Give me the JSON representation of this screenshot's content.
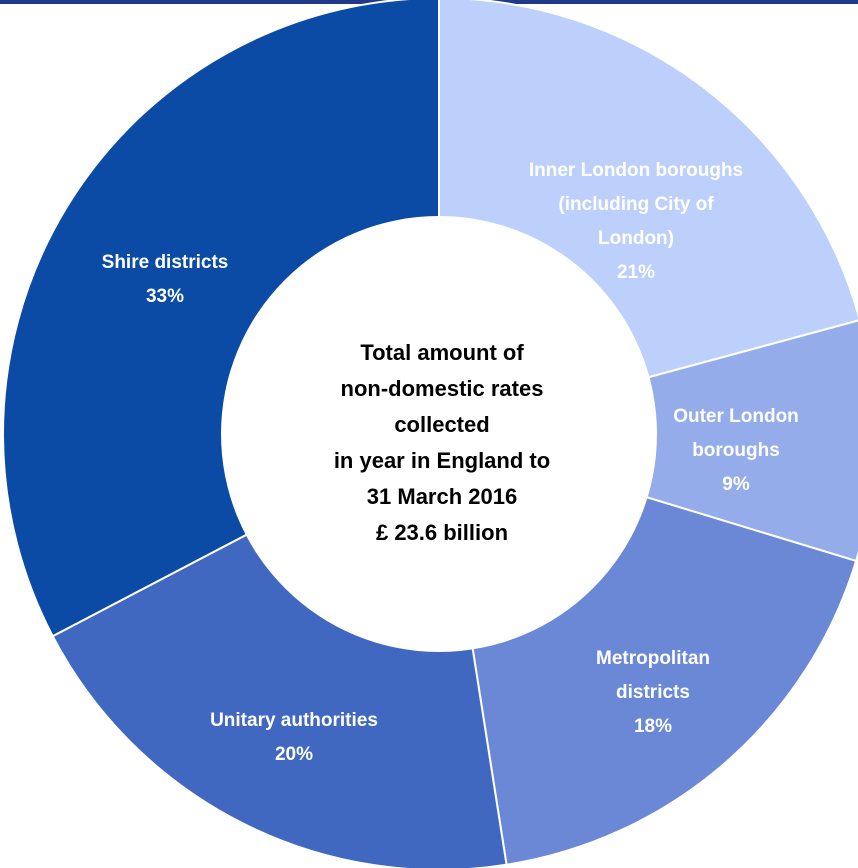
{
  "chart_data": {
    "type": "pie",
    "categories": [
      "Inner London boroughs (including City of London)",
      "Outer London boroughs",
      "Metropolitan districts",
      "Unitary authorities",
      "Shire districts"
    ],
    "values": [
      21,
      9,
      18,
      20,
      33
    ],
    "value_suffix": "%",
    "colors": [
      "#bdd0fb",
      "#95acea",
      "#6b88d6",
      "#4168c0",
      "#0b4ba5"
    ],
    "slice_labels": [
      [
        "Inner London boroughs",
        "(including City of",
        "London)",
        "21%"
      ],
      [
        "Outer London",
        "boroughs",
        "9%"
      ],
      [
        "Metropolitan",
        "districts",
        "18%"
      ],
      [
        "Unitary authorities",
        "20%"
      ],
      [
        "Shire districts",
        "33%"
      ]
    ],
    "center_text": [
      "Total amount of",
      "non-domestic rates",
      "collected",
      "in year in England to",
      "31 March 2016",
      "£ 23.6 billion"
    ]
  }
}
